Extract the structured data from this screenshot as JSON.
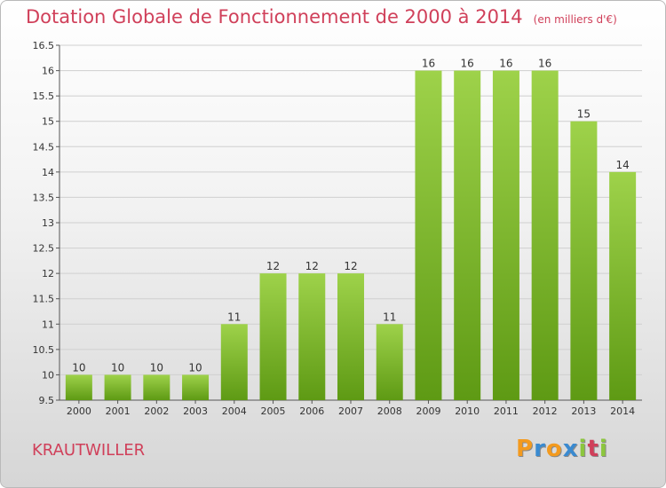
{
  "title": "Dotation Globale de Fonctionnement de 2000 à 2014",
  "unit": "(en milliers d'€)",
  "location": "KRAUTWILLER",
  "logo": {
    "letters": [
      "P",
      "r",
      "o",
      "x",
      "i",
      "t",
      "i"
    ],
    "colors": [
      "#f39a1e",
      "#3a8ad0",
      "#f39a1e",
      "#3a8ad0",
      "#8cc63e",
      "#d0405a",
      "#8cc63e"
    ]
  },
  "colors": {
    "bar_top": "#9ed24a",
    "bar_bottom": "#5e9a14",
    "title": "#d0405a"
  },
  "chart_data": {
    "type": "bar",
    "categories": [
      "2000",
      "2001",
      "2002",
      "2003",
      "2004",
      "2005",
      "2006",
      "2007",
      "2008",
      "2009",
      "2010",
      "2011",
      "2012",
      "2013",
      "2014"
    ],
    "values": [
      10,
      10,
      10,
      10,
      11,
      12,
      12,
      12,
      11,
      16,
      16,
      16,
      16,
      15,
      14
    ],
    "data_labels": [
      "10",
      "10",
      "10",
      "10",
      "11",
      "12",
      "12",
      "12",
      "11",
      "16",
      "16",
      "16",
      "16",
      "15",
      "14"
    ],
    "ylim": [
      9.5,
      16.5
    ],
    "yticks": [
      9.5,
      10,
      10.5,
      11,
      11.5,
      12,
      12.5,
      13,
      13.5,
      14,
      14.5,
      15,
      15.5,
      16,
      16.5
    ],
    "ytick_labels": [
      "9.5",
      "10",
      "10.5",
      "11",
      "11.5",
      "12",
      "12.5",
      "13",
      "13.5",
      "14",
      "14.5",
      "15",
      "15.5",
      "16",
      "16.5"
    ],
    "grid": true,
    "xlabel": "",
    "ylabel": ""
  }
}
